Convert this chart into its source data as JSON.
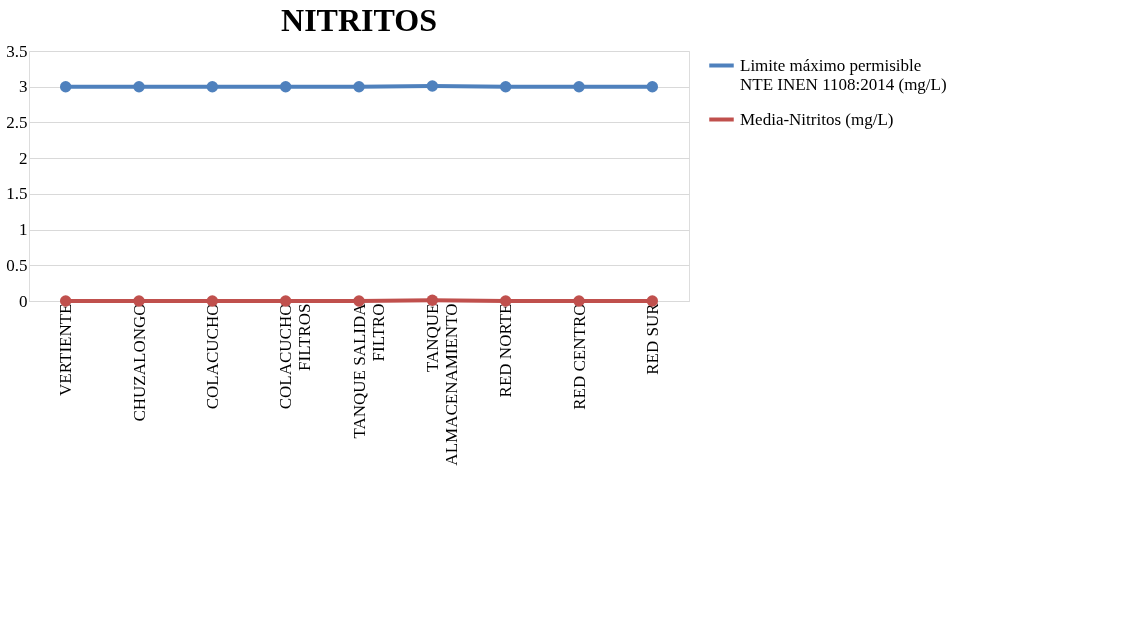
{
  "chart_data": {
    "type": "line",
    "title": "NITRITOS",
    "categories": [
      "VERTIENTE",
      "CHUZALONGO",
      "COLACUCHO",
      "COLACUCHO FILTROS",
      "TANQUE SALIDA FILTRO",
      "TANQUE ALMACENAMIENTO",
      "RED NORTE",
      "RED CENTRO",
      "RED SUR"
    ],
    "series": [
      {
        "name": "Limite máximo permisible NTE INEN 1108:2014 (mg/L)",
        "color": "#4f81bd",
        "values": [
          3,
          3,
          3,
          3,
          3,
          3.01,
          3,
          3,
          3
        ]
      },
      {
        "name": "Media-Nitritos (mg/L)",
        "color": "#c0504d",
        "values": [
          0,
          0,
          0,
          0,
          0,
          0.01,
          0,
          0,
          0
        ]
      }
    ],
    "ylim": [
      0,
      3.5
    ],
    "yticks": [
      0,
      0.5,
      1,
      1.5,
      2,
      2.5,
      3,
      3.5
    ],
    "grid": "y",
    "legend": "right",
    "marker": "circle",
    "line_style": "solid"
  }
}
